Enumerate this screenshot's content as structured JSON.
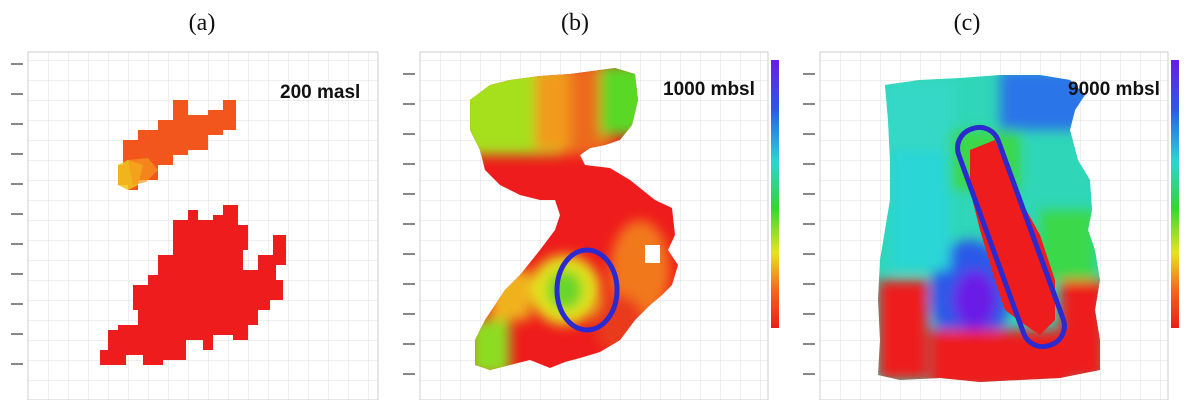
{
  "panels": [
    {
      "label": "(a)",
      "depth": "200 masl"
    },
    {
      "label": "(b)",
      "depth": "1000 mbsl"
    },
    {
      "label": "(c)",
      "depth": "9000 mbsl"
    }
  ],
  "colors": {
    "red": "#ee1c1c",
    "orange": "#f5651e",
    "yellow": "#e8e41c",
    "green": "#33d633",
    "cyan": "#2ad6d6",
    "blue": "#2b58e8",
    "violet": "#6a1ce6",
    "highlight_outline": "#2a2ad0"
  }
}
